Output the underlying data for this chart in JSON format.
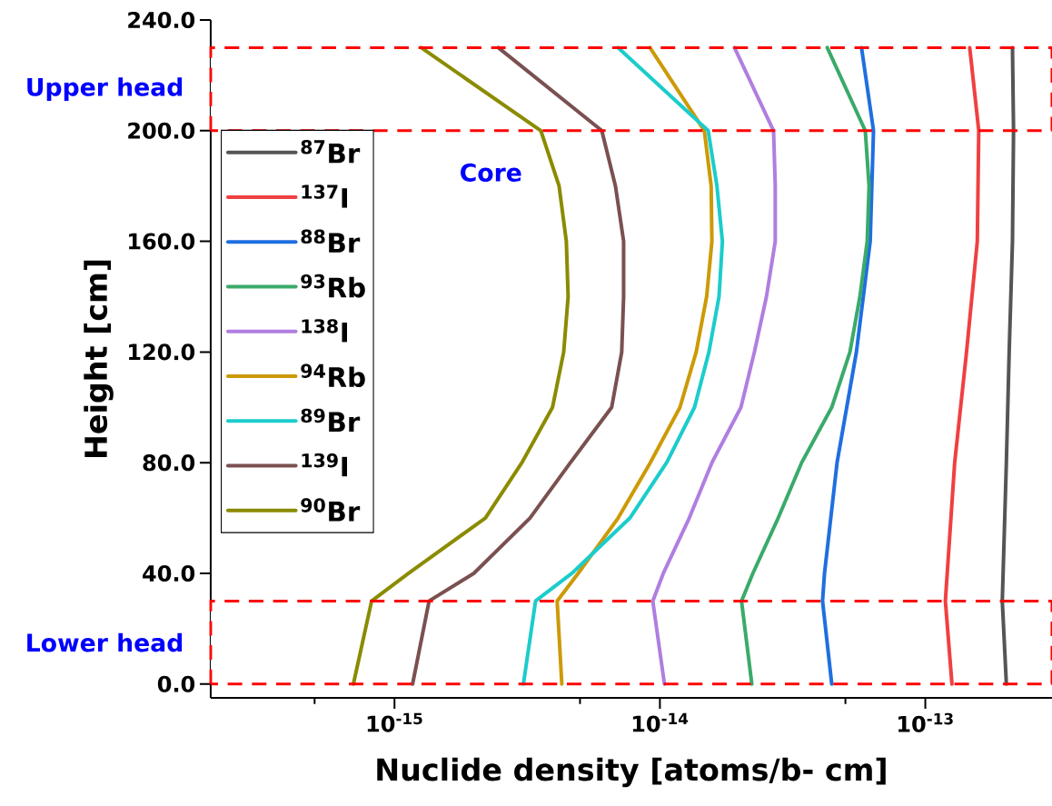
{
  "chart_data": {
    "type": "line",
    "xlabel": "Nuclide density [atoms/b- cm]",
    "ylabel": "Height [cm]",
    "log": "x",
    "legend": "top left",
    "xlim": [
      2.03e-16,
      3e-13
    ],
    "ylim": [
      -5,
      240
    ],
    "xticks": [
      {
        "value": 5e-16,
        "label": null
      },
      {
        "value": 1e-15,
        "label": "10$^{-15}$"
      },
      {
        "value": 5e-15,
        "label": null
      },
      {
        "value": 1e-14,
        "label": "10$^{-14}$"
      },
      {
        "value": 5e-14,
        "label": null
      },
      {
        "value": 1e-13,
        "label": "10$^{-13}$"
      }
    ],
    "yticks": [
      {
        "value": 0,
        "label": "0.0"
      },
      {
        "value": 40,
        "label": "40.0"
      },
      {
        "value": 80,
        "label": "80.0"
      },
      {
        "value": 120,
        "label": "120.0"
      },
      {
        "value": 160,
        "label": "160.0"
      },
      {
        "value": 200,
        "label": "200.0"
      },
      {
        "value": 240,
        "label": "240.0"
      }
    ],
    "bands": [
      {
        "axis": "y",
        "from": 200,
        "to": 230,
        "label": "Upper head"
      },
      {
        "axis": "y",
        "from": 0,
        "to": 30,
        "label": "Lower head"
      }
    ],
    "annotations": [
      "Core"
    ],
    "series": [
      {
        "name": "$^{87}$Br",
        "color": "#555555",
        "x": [
          2.02e-13,
          1.95e-13,
          2.02e-13,
          2.07e-13,
          2.13e-13,
          2.15e-13,
          2.13e-13
        ],
        "values": [
          0,
          30,
          80,
          120,
          160,
          200,
          230
        ]
      },
      {
        "name": "$^{137}$I",
        "color": "#f04040",
        "x": [
          1.26e-13,
          1.19e-13,
          1.29e-13,
          1.43e-13,
          1.57e-13,
          1.59e-13,
          1.47e-13
        ],
        "values": [
          0,
          30,
          80,
          120,
          160,
          200,
          230
        ]
      },
      {
        "name": "$^{88}$Br",
        "color": "#1f6fe0",
        "x": [
          4.44e-14,
          4.1e-14,
          4.17e-14,
          4.65e-14,
          5.5e-14,
          6.2e-14,
          6.38e-14,
          5.75e-14
        ],
        "values": [
          0,
          30,
          40,
          80,
          120,
          160,
          200,
          230
        ]
      },
      {
        "name": "$^{93}$Rb",
        "color": "#3aaa6a",
        "x": [
          2.22e-14,
          2.03e-14,
          2.24e-14,
          2.79e-14,
          3.42e-14,
          4.44e-14,
          5.2e-14,
          5.67e-14,
          6.04e-14,
          6.14e-14,
          5.94e-14,
          4.27e-14
        ],
        "values": [
          0,
          30,
          40,
          60,
          80,
          100,
          120,
          140,
          160,
          180,
          200,
          230
        ]
      },
      {
        "name": "$^{138}$I",
        "color": "#b07ee0",
        "x": [
          1.04e-14,
          9.4e-15,
          1.03e-14,
          1.29e-14,
          1.57e-14,
          2.02e-14,
          2.27e-14,
          2.52e-14,
          2.72e-14,
          2.72e-14,
          2.68e-14,
          1.91e-14
        ],
        "values": [
          0,
          30,
          40,
          60,
          80,
          100,
          120,
          140,
          160,
          180,
          200,
          230
        ]
      },
      {
        "name": "$^{94}$Rb",
        "color": "#cc9a06",
        "x": [
          4.27e-15,
          4.1e-15,
          4.92e-15,
          6.96e-15,
          9.2e-15,
          1.19e-14,
          1.37e-14,
          1.5e-14,
          1.57e-14,
          1.56e-14,
          1.47e-14,
          9.17e-15
        ],
        "values": [
          0,
          30,
          40,
          60,
          80,
          100,
          120,
          140,
          160,
          180,
          200,
          230
        ]
      },
      {
        "name": "$^{89}$Br",
        "color": "#1ccccc",
        "x": [
          3.06e-15,
          3.4e-15,
          4.66e-15,
          7.71e-15,
          1.06e-14,
          1.35e-14,
          1.53e-14,
          1.67e-14,
          1.72e-14,
          1.64e-14,
          1.52e-14,
          6.96e-15
        ],
        "values": [
          0,
          30,
          40,
          60,
          80,
          100,
          120,
          140,
          160,
          180,
          200,
          230
        ]
      },
      {
        "name": "$^{139}$I",
        "color": "#7a5050",
        "x": [
          1.17e-15,
          1.35e-15,
          1.99e-15,
          3.24e-15,
          4.6e-15,
          6.58e-15,
          7.18e-15,
          7.3e-15,
          7.3e-15,
          6.8e-15,
          6.04e-15,
          2.46e-15
        ],
        "values": [
          0,
          30,
          40,
          60,
          80,
          100,
          120,
          140,
          160,
          180,
          200,
          230
        ]
      },
      {
        "name": "$^{90}$Br",
        "color": "#8b8b00",
        "x": [
          7e-16,
          8.2e-16,
          1.13e-15,
          2.2e-15,
          3.02e-15,
          3.94e-15,
          4.34e-15,
          4.51e-15,
          4.44e-15,
          4.17e-15,
          3.56e-15,
          1.26e-15
        ],
        "values": [
          0,
          30,
          40,
          60,
          80,
          100,
          120,
          140,
          160,
          180,
          200,
          230
        ]
      }
    ]
  }
}
